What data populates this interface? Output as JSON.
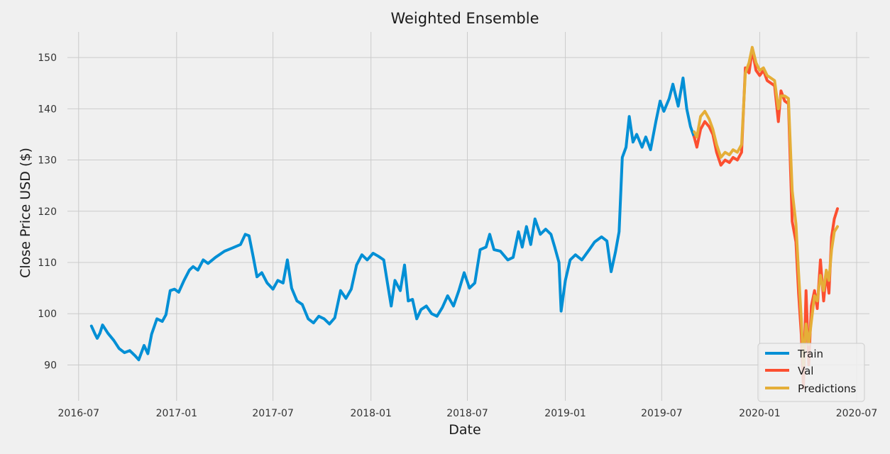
{
  "chart_data": {
    "type": "line",
    "title": "Weighted Ensemble",
    "xlabel": "Date",
    "ylabel": "Close Price USD ($)",
    "x_ticks": [
      "2016-07",
      "2017-01",
      "2017-07",
      "2018-01",
      "2018-07",
      "2019-01",
      "2019-07",
      "2020-01",
      "2020-07"
    ],
    "y_ticks": [
      90,
      100,
      110,
      120,
      130,
      140,
      150
    ],
    "xlim": [
      "2016-06-10",
      "2020-07-25"
    ],
    "ylim": [
      83,
      155
    ],
    "grid": true,
    "legend_position": "lower-right",
    "colors": {
      "background": "#f0f0f0",
      "grid": "#cbcbcb",
      "train": "#008fd5",
      "val": "#fc4f30",
      "predictions": "#e5ae38"
    },
    "series": [
      {
        "name": "Train",
        "color": "#008fd5",
        "points": [
          [
            "2016-07-25",
            97.6
          ],
          [
            "2016-08-01",
            96.0
          ],
          [
            "2016-08-05",
            95.2
          ],
          [
            "2016-08-10",
            96.2
          ],
          [
            "2016-08-15",
            97.8
          ],
          [
            "2016-08-25",
            96.2
          ],
          [
            "2016-09-05",
            94.8
          ],
          [
            "2016-09-15",
            93.2
          ],
          [
            "2016-09-25",
            92.4
          ],
          [
            "2016-10-05",
            92.8
          ],
          [
            "2016-10-15",
            91.8
          ],
          [
            "2016-10-22",
            91.0
          ],
          [
            "2016-11-01",
            93.8
          ],
          [
            "2016-11-08",
            92.2
          ],
          [
            "2016-11-15",
            96.0
          ],
          [
            "2016-11-25",
            99.0
          ],
          [
            "2016-12-05",
            98.5
          ],
          [
            "2016-12-12",
            99.8
          ],
          [
            "2016-12-20",
            104.5
          ],
          [
            "2016-12-28",
            104.8
          ],
          [
            "2017-01-05",
            104.2
          ],
          [
            "2017-01-15",
            106.5
          ],
          [
            "2017-01-25",
            108.5
          ],
          [
            "2017-02-01",
            109.2
          ],
          [
            "2017-02-10",
            108.5
          ],
          [
            "2017-02-20",
            110.5
          ],
          [
            "2017-03-01",
            109.8
          ],
          [
            "2017-03-15",
            111.0
          ],
          [
            "2017-04-01",
            112.2
          ],
          [
            "2017-04-15",
            112.8
          ],
          [
            "2017-05-01",
            113.5
          ],
          [
            "2017-05-10",
            115.5
          ],
          [
            "2017-05-17",
            115.2
          ],
          [
            "2017-05-25",
            111.0
          ],
          [
            "2017-06-01",
            107.2
          ],
          [
            "2017-06-10",
            108.0
          ],
          [
            "2017-06-20",
            106.0
          ],
          [
            "2017-07-01",
            104.8
          ],
          [
            "2017-07-10",
            106.5
          ],
          [
            "2017-07-20",
            106.0
          ],
          [
            "2017-07-28",
            110.5
          ],
          [
            "2017-08-05",
            105.0
          ],
          [
            "2017-08-15",
            102.5
          ],
          [
            "2017-08-25",
            101.8
          ],
          [
            "2017-09-05",
            99.0
          ],
          [
            "2017-09-15",
            98.2
          ],
          [
            "2017-09-25",
            99.5
          ],
          [
            "2017-10-05",
            99.0
          ],
          [
            "2017-10-15",
            98.0
          ],
          [
            "2017-10-25",
            99.2
          ],
          [
            "2017-11-05",
            104.5
          ],
          [
            "2017-11-15",
            103.0
          ],
          [
            "2017-11-25",
            104.8
          ],
          [
            "2017-12-05",
            109.5
          ],
          [
            "2017-12-15",
            111.5
          ],
          [
            "2017-12-25",
            110.5
          ],
          [
            "2018-01-05",
            111.8
          ],
          [
            "2018-01-15",
            111.2
          ],
          [
            "2018-01-25",
            110.5
          ],
          [
            "2018-02-01",
            106.0
          ],
          [
            "2018-02-08",
            101.5
          ],
          [
            "2018-02-15",
            106.5
          ],
          [
            "2018-02-25",
            104.5
          ],
          [
            "2018-03-05",
            109.5
          ],
          [
            "2018-03-12",
            102.5
          ],
          [
            "2018-03-20",
            102.8
          ],
          [
            "2018-03-28",
            99.0
          ],
          [
            "2018-04-05",
            100.8
          ],
          [
            "2018-04-15",
            101.5
          ],
          [
            "2018-04-25",
            100.0
          ],
          [
            "2018-05-05",
            99.5
          ],
          [
            "2018-05-15",
            101.2
          ],
          [
            "2018-05-25",
            103.5
          ],
          [
            "2018-06-05",
            101.5
          ],
          [
            "2018-06-15",
            104.5
          ],
          [
            "2018-06-25",
            108.0
          ],
          [
            "2018-07-05",
            105.0
          ],
          [
            "2018-07-15",
            106.0
          ],
          [
            "2018-07-25",
            112.5
          ],
          [
            "2018-08-05",
            113.0
          ],
          [
            "2018-08-12",
            115.5
          ],
          [
            "2018-08-20",
            112.5
          ],
          [
            "2018-09-01",
            112.2
          ],
          [
            "2018-09-15",
            110.5
          ],
          [
            "2018-09-25",
            111.0
          ],
          [
            "2018-10-05",
            116.0
          ],
          [
            "2018-10-12",
            113.0
          ],
          [
            "2018-10-20",
            117.0
          ],
          [
            "2018-10-28",
            113.5
          ],
          [
            "2018-11-05",
            118.5
          ],
          [
            "2018-11-15",
            115.5
          ],
          [
            "2018-11-25",
            116.5
          ],
          [
            "2018-12-05",
            115.5
          ],
          [
            "2018-12-12",
            113.0
          ],
          [
            "2018-12-20",
            110.0
          ],
          [
            "2018-12-24",
            100.5
          ],
          [
            "2019-01-01",
            106.5
          ],
          [
            "2019-01-10",
            110.5
          ],
          [
            "2019-01-20",
            111.5
          ],
          [
            "2019-02-01",
            110.5
          ],
          [
            "2019-02-15",
            112.5
          ],
          [
            "2019-02-25",
            114.0
          ],
          [
            "2019-03-10",
            115.0
          ],
          [
            "2019-03-20",
            114.2
          ],
          [
            "2019-03-28",
            108.2
          ],
          [
            "2019-04-05",
            112.0
          ],
          [
            "2019-04-12",
            116.0
          ],
          [
            "2019-04-18",
            130.5
          ],
          [
            "2019-04-25",
            132.5
          ],
          [
            "2019-05-01",
            138.5
          ],
          [
            "2019-05-08",
            133.5
          ],
          [
            "2019-05-15",
            135.0
          ],
          [
            "2019-05-25",
            132.5
          ],
          [
            "2019-06-01",
            134.5
          ],
          [
            "2019-06-10",
            132.0
          ],
          [
            "2019-06-20",
            137.5
          ],
          [
            "2019-06-28",
            141.5
          ],
          [
            "2019-07-05",
            139.5
          ],
          [
            "2019-07-15",
            142.0
          ],
          [
            "2019-07-22",
            144.8
          ],
          [
            "2019-08-01",
            140.5
          ],
          [
            "2019-08-10",
            146.0
          ],
          [
            "2019-08-17",
            140.0
          ],
          [
            "2019-08-24",
            136.5
          ],
          [
            "2019-08-31",
            134.5
          ]
        ]
      },
      {
        "name": "Val",
        "color": "#fc4f30",
        "points": [
          [
            "2019-08-31",
            134.5
          ],
          [
            "2019-09-05",
            132.5
          ],
          [
            "2019-09-12",
            136.0
          ],
          [
            "2019-09-20",
            137.5
          ],
          [
            "2019-09-28",
            136.5
          ],
          [
            "2019-10-05",
            135.0
          ],
          [
            "2019-10-12",
            131.5
          ],
          [
            "2019-10-20",
            129.0
          ],
          [
            "2019-10-28",
            130.0
          ],
          [
            "2019-11-05",
            129.5
          ],
          [
            "2019-11-12",
            130.5
          ],
          [
            "2019-11-20",
            130.0
          ],
          [
            "2019-11-28",
            131.5
          ],
          [
            "2019-12-05",
            148.0
          ],
          [
            "2019-12-12",
            147.0
          ],
          [
            "2019-12-18",
            151.5
          ],
          [
            "2019-12-25",
            147.5
          ],
          [
            "2020-01-01",
            146.5
          ],
          [
            "2020-01-08",
            147.5
          ],
          [
            "2020-01-15",
            145.5
          ],
          [
            "2020-01-22",
            145.0
          ],
          [
            "2020-01-29",
            144.5
          ],
          [
            "2020-02-05",
            137.5
          ],
          [
            "2020-02-10",
            143.5
          ],
          [
            "2020-02-17",
            141.5
          ],
          [
            "2020-02-24",
            141.0
          ],
          [
            "2020-03-02",
            118.0
          ],
          [
            "2020-03-09",
            114.0
          ],
          [
            "2020-03-14",
            104.0
          ],
          [
            "2020-03-19",
            96.0
          ],
          [
            "2020-03-23",
            85.5
          ],
          [
            "2020-03-28",
            104.5
          ],
          [
            "2020-04-02",
            90.0
          ],
          [
            "2020-04-07",
            101.5
          ],
          [
            "2020-04-13",
            104.5
          ],
          [
            "2020-04-18",
            101.0
          ],
          [
            "2020-04-24",
            110.5
          ],
          [
            "2020-04-30",
            102.5
          ],
          [
            "2020-05-05",
            108.0
          ],
          [
            "2020-05-10",
            104.0
          ],
          [
            "2020-05-15",
            115.0
          ],
          [
            "2020-05-20",
            118.5
          ],
          [
            "2020-05-26",
            120.5
          ]
        ]
      },
      {
        "name": "Predictions",
        "color": "#e5ae38",
        "points": [
          [
            "2019-08-31",
            135.5
          ],
          [
            "2019-09-05",
            134.5
          ],
          [
            "2019-09-12",
            138.5
          ],
          [
            "2019-09-20",
            139.5
          ],
          [
            "2019-09-28",
            138.0
          ],
          [
            "2019-10-05",
            136.0
          ],
          [
            "2019-10-12",
            133.0
          ],
          [
            "2019-10-20",
            130.5
          ],
          [
            "2019-10-28",
            131.5
          ],
          [
            "2019-11-05",
            131.0
          ],
          [
            "2019-11-12",
            132.0
          ],
          [
            "2019-11-20",
            131.5
          ],
          [
            "2019-11-28",
            133.0
          ],
          [
            "2019-12-05",
            147.0
          ],
          [
            "2019-12-12",
            149.0
          ],
          [
            "2019-12-18",
            152.0
          ],
          [
            "2019-12-25",
            149.0
          ],
          [
            "2020-01-01",
            147.5
          ],
          [
            "2020-01-08",
            148.0
          ],
          [
            "2020-01-15",
            146.5
          ],
          [
            "2020-01-22",
            146.0
          ],
          [
            "2020-01-29",
            145.5
          ],
          [
            "2020-02-05",
            140.0
          ],
          [
            "2020-02-10",
            142.5
          ],
          [
            "2020-02-17",
            142.5
          ],
          [
            "2020-02-24",
            142.0
          ],
          [
            "2020-03-02",
            124.0
          ],
          [
            "2020-03-09",
            117.5
          ],
          [
            "2020-03-14",
            108.0
          ],
          [
            "2020-03-19",
            99.0
          ],
          [
            "2020-03-23",
            90.0
          ],
          [
            "2020-03-28",
            98.0
          ],
          [
            "2020-04-02",
            94.0
          ],
          [
            "2020-04-07",
            98.5
          ],
          [
            "2020-04-13",
            103.5
          ],
          [
            "2020-04-18",
            102.5
          ],
          [
            "2020-04-24",
            107.5
          ],
          [
            "2020-04-30",
            104.5
          ],
          [
            "2020-05-05",
            108.5
          ],
          [
            "2020-05-10",
            106.5
          ],
          [
            "2020-05-15",
            112.5
          ],
          [
            "2020-05-20",
            116.0
          ],
          [
            "2020-05-26",
            117.0
          ]
        ]
      }
    ]
  }
}
